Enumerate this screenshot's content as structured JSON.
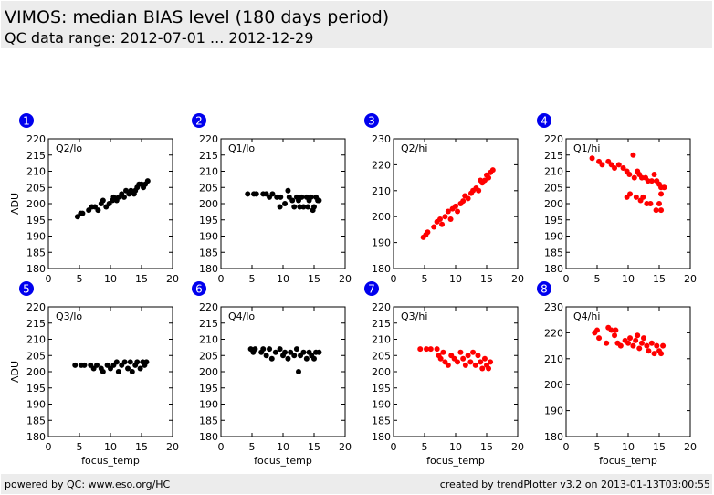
{
  "header": {
    "title": "VIMOS: median BIAS level (180 days period)",
    "subtitle": "QC data range: 2012-07-01 ... 2012-12-29"
  },
  "footer": {
    "left": "powered by QC: www.eso.org/HC",
    "right": "created by trendPlotter v3.2 on 2013-01-13T03:00:55"
  },
  "colors": {
    "black_series": "#000000",
    "red_series": "#ff0000",
    "badge": "#0000ee"
  },
  "chart_data": [
    {
      "type": "scatter",
      "badge": "1",
      "label": "Q2/lo",
      "ylabel": "ADU",
      "xlabel": "",
      "xlim": [
        0,
        20
      ],
      "ylim": [
        180,
        220
      ],
      "xticks": [
        0,
        5,
        10,
        15,
        20
      ],
      "yticks": [
        180,
        185,
        190,
        195,
        200,
        205,
        210,
        215,
        220
      ],
      "color": "#000000",
      "points": [
        [
          4.7,
          196
        ],
        [
          5.2,
          197
        ],
        [
          5.5,
          197
        ],
        [
          6.5,
          198
        ],
        [
          7,
          199
        ],
        [
          7.5,
          199
        ],
        [
          8,
          198
        ],
        [
          8.5,
          200
        ],
        [
          8.8,
          201
        ],
        [
          9.3,
          199
        ],
        [
          9.8,
          200
        ],
        [
          10.3,
          201
        ],
        [
          10.5,
          202
        ],
        [
          11,
          201
        ],
        [
          11.3,
          202
        ],
        [
          11.8,
          203
        ],
        [
          12.2,
          202
        ],
        [
          12.5,
          204
        ],
        [
          13,
          203
        ],
        [
          13.3,
          204
        ],
        [
          13.8,
          203
        ],
        [
          14,
          204
        ],
        [
          14.3,
          205
        ],
        [
          14.6,
          206
        ],
        [
          15,
          206
        ],
        [
          15.3,
          205
        ],
        [
          15.6,
          206
        ],
        [
          16,
          207
        ]
      ]
    },
    {
      "type": "scatter",
      "badge": "2",
      "label": "Q1/lo",
      "ylabel": "",
      "xlabel": "",
      "xlim": [
        0,
        20
      ],
      "ylim": [
        180,
        220
      ],
      "xticks": [
        0,
        5,
        10,
        15,
        20
      ],
      "yticks": [
        180,
        185,
        190,
        195,
        200,
        205,
        210,
        215,
        220
      ],
      "color": "#000000",
      "points": [
        [
          4.3,
          203
        ],
        [
          5.3,
          203
        ],
        [
          5.7,
          203
        ],
        [
          6.8,
          203
        ],
        [
          7.3,
          203
        ],
        [
          7.8,
          202
        ],
        [
          8.3,
          203
        ],
        [
          9,
          202
        ],
        [
          9.6,
          202
        ],
        [
          9.5,
          199
        ],
        [
          10.3,
          200
        ],
        [
          10.8,
          204
        ],
        [
          11,
          202
        ],
        [
          11.5,
          201
        ],
        [
          11.8,
          199
        ],
        [
          12.2,
          202
        ],
        [
          12.5,
          201
        ],
        [
          13,
          202
        ],
        [
          13.3,
          199
        ],
        [
          13.8,
          202
        ],
        [
          14.2,
          201
        ],
        [
          14.5,
          202
        ],
        [
          14.8,
          198
        ],
        [
          15,
          199
        ],
        [
          15.3,
          202
        ],
        [
          15.6,
          201
        ],
        [
          15.8,
          201
        ],
        [
          12.7,
          199
        ],
        [
          14,
          199
        ]
      ]
    },
    {
      "type": "scatter",
      "badge": "3",
      "label": "Q2/hi",
      "ylabel": "",
      "xlabel": "",
      "xlim": [
        0,
        20
      ],
      "ylim": [
        180,
        230
      ],
      "xticks": [
        0,
        5,
        10,
        15,
        20
      ],
      "yticks": [
        180,
        190,
        200,
        210,
        220,
        230
      ],
      "color": "#ff0000",
      "points": [
        [
          4.8,
          192
        ],
        [
          5.2,
          193
        ],
        [
          5.5,
          194
        ],
        [
          6.5,
          196
        ],
        [
          7,
          198
        ],
        [
          7.5,
          199
        ],
        [
          7.8,
          197
        ],
        [
          8.3,
          200
        ],
        [
          8.8,
          202
        ],
        [
          9.2,
          199
        ],
        [
          9.5,
          203
        ],
        [
          10,
          204
        ],
        [
          10.3,
          202
        ],
        [
          10.8,
          205
        ],
        [
          11.2,
          206
        ],
        [
          11.5,
          208
        ],
        [
          12,
          207
        ],
        [
          12.5,
          209
        ],
        [
          12.8,
          210
        ],
        [
          13.3,
          211
        ],
        [
          13.7,
          210
        ],
        [
          14,
          214
        ],
        [
          14.3,
          213
        ],
        [
          14.7,
          214
        ],
        [
          15,
          216
        ],
        [
          15.3,
          215
        ],
        [
          15.6,
          217
        ],
        [
          16,
          218
        ]
      ]
    },
    {
      "type": "scatter",
      "badge": "4",
      "label": "Q1/hi",
      "ylabel": "",
      "xlabel": "",
      "xlim": [
        0,
        20
      ],
      "ylim": [
        180,
        220
      ],
      "xticks": [
        0,
        5,
        10,
        15,
        20
      ],
      "yticks": [
        180,
        185,
        190,
        195,
        200,
        205,
        210,
        215,
        220
      ],
      "color": "#ff0000",
      "points": [
        [
          4.2,
          214
        ],
        [
          5.3,
          213
        ],
        [
          5.8,
          212
        ],
        [
          6.8,
          213
        ],
        [
          7.3,
          212
        ],
        [
          7.8,
          211
        ],
        [
          8.5,
          212
        ],
        [
          9.2,
          211
        ],
        [
          9.8,
          210
        ],
        [
          10.2,
          209
        ],
        [
          10.8,
          215
        ],
        [
          11,
          208
        ],
        [
          11.5,
          210
        ],
        [
          11.8,
          209
        ],
        [
          12.2,
          208
        ],
        [
          12.8,
          208
        ],
        [
          13.2,
          207
        ],
        [
          13.8,
          207
        ],
        [
          14.2,
          209
        ],
        [
          14.6,
          207
        ],
        [
          15,
          206
        ],
        [
          15.3,
          205
        ],
        [
          15.8,
          205
        ],
        [
          9.8,
          202
        ],
        [
          10.3,
          203
        ],
        [
          11.3,
          202
        ],
        [
          12,
          201
        ],
        [
          12.4,
          202
        ],
        [
          13,
          200
        ],
        [
          13.6,
          200
        ],
        [
          14.5,
          198
        ],
        [
          15,
          200
        ],
        [
          15.3,
          198
        ],
        [
          15.3,
          203
        ]
      ]
    },
    {
      "type": "scatter",
      "badge": "5",
      "label": "Q3/lo",
      "ylabel": "ADU",
      "xlabel": "focus_temp",
      "xlim": [
        0,
        20
      ],
      "ylim": [
        180,
        220
      ],
      "xticks": [
        0,
        5,
        10,
        15,
        20
      ],
      "yticks": [
        180,
        185,
        190,
        195,
        200,
        205,
        210,
        215,
        220
      ],
      "color": "#000000",
      "points": [
        [
          4.3,
          202
        ],
        [
          5.3,
          202
        ],
        [
          5.8,
          202
        ],
        [
          6.8,
          202
        ],
        [
          7.3,
          201
        ],
        [
          7.8,
          202
        ],
        [
          8.5,
          201
        ],
        [
          8.8,
          200
        ],
        [
          9.5,
          202
        ],
        [
          10,
          201
        ],
        [
          10.5,
          202
        ],
        [
          11,
          203
        ],
        [
          11.3,
          200
        ],
        [
          11.8,
          202
        ],
        [
          12.3,
          203
        ],
        [
          12.8,
          201
        ],
        [
          13.2,
          203
        ],
        [
          13.5,
          200
        ],
        [
          14,
          202
        ],
        [
          14.3,
          203
        ],
        [
          14.8,
          201
        ],
        [
          15.2,
          203
        ],
        [
          15.5,
          202
        ],
        [
          15.8,
          203
        ]
      ]
    },
    {
      "type": "scatter",
      "badge": "6",
      "label": "Q4/lo",
      "ylabel": "",
      "xlabel": "focus_temp",
      "xlim": [
        0,
        20
      ],
      "ylim": [
        180,
        220
      ],
      "xticks": [
        0,
        5,
        10,
        15,
        20
      ],
      "yticks": [
        180,
        185,
        190,
        195,
        200,
        205,
        210,
        215,
        220
      ],
      "color": "#000000",
      "points": [
        [
          4.8,
          207
        ],
        [
          5.2,
          206
        ],
        [
          5.5,
          207
        ],
        [
          6.5,
          206
        ],
        [
          6.8,
          207
        ],
        [
          7.3,
          205
        ],
        [
          7.8,
          207
        ],
        [
          8.2,
          204
        ],
        [
          8.8,
          206
        ],
        [
          9.5,
          207
        ],
        [
          10,
          205
        ],
        [
          10.3,
          206
        ],
        [
          10.8,
          204
        ],
        [
          11.2,
          206
        ],
        [
          11.8,
          205
        ],
        [
          12.2,
          207
        ],
        [
          12.5,
          200
        ],
        [
          12.8,
          205
        ],
        [
          13.3,
          206
        ],
        [
          13.8,
          204
        ],
        [
          14.2,
          206
        ],
        [
          14.6,
          205
        ],
        [
          15,
          204
        ],
        [
          15.3,
          206
        ],
        [
          15.8,
          206
        ]
      ]
    },
    {
      "type": "scatter",
      "badge": "7",
      "label": "Q3/hi",
      "ylabel": "",
      "xlabel": "focus_temp",
      "xlim": [
        0,
        20
      ],
      "ylim": [
        180,
        220
      ],
      "xticks": [
        0,
        5,
        10,
        15,
        20
      ],
      "yticks": [
        180,
        185,
        190,
        195,
        200,
        205,
        210,
        215,
        220
      ],
      "color": "#ff0000",
      "points": [
        [
          4.3,
          207
        ],
        [
          5.3,
          207
        ],
        [
          6,
          207
        ],
        [
          7,
          207
        ],
        [
          7.3,
          205
        ],
        [
          7.6,
          204
        ],
        [
          8,
          206
        ],
        [
          8.3,
          203
        ],
        [
          8.8,
          202
        ],
        [
          9.3,
          205
        ],
        [
          9.8,
          204
        ],
        [
          10.3,
          203
        ],
        [
          10.8,
          206
        ],
        [
          11.2,
          204
        ],
        [
          11.6,
          202
        ],
        [
          12,
          205
        ],
        [
          12.4,
          203
        ],
        [
          12.8,
          206
        ],
        [
          13.2,
          202
        ],
        [
          13.6,
          205
        ],
        [
          14,
          203
        ],
        [
          14.3,
          201
        ],
        [
          14.7,
          204
        ],
        [
          15,
          202
        ],
        [
          15.3,
          201
        ],
        [
          15.6,
          203
        ]
      ]
    },
    {
      "type": "scatter",
      "badge": "8",
      "label": "Q4/hi",
      "ylabel": "",
      "xlabel": "focus_temp",
      "xlim": [
        0,
        20
      ],
      "ylim": [
        180,
        230
      ],
      "xticks": [
        0,
        5,
        10,
        15,
        20
      ],
      "yticks": [
        180,
        190,
        200,
        210,
        220,
        230
      ],
      "color": "#ff0000",
      "points": [
        [
          4.6,
          220
        ],
        [
          5,
          221
        ],
        [
          5.3,
          218
        ],
        [
          6.5,
          216
        ],
        [
          6.8,
          222
        ],
        [
          7.3,
          221
        ],
        [
          7.8,
          219
        ],
        [
          8,
          221
        ],
        [
          8.3,
          216
        ],
        [
          8.8,
          215
        ],
        [
          9.5,
          217
        ],
        [
          10,
          216
        ],
        [
          10.3,
          218
        ],
        [
          10.8,
          215
        ],
        [
          11.2,
          217
        ],
        [
          11.5,
          219
        ],
        [
          11.8,
          214
        ],
        [
          12.2,
          216
        ],
        [
          12.5,
          218
        ],
        [
          13,
          215
        ],
        [
          13.3,
          213
        ],
        [
          13.8,
          216
        ],
        [
          14.2,
          212
        ],
        [
          14.6,
          215
        ],
        [
          15,
          213
        ],
        [
          15.3,
          212
        ],
        [
          15.6,
          215
        ]
      ]
    }
  ]
}
